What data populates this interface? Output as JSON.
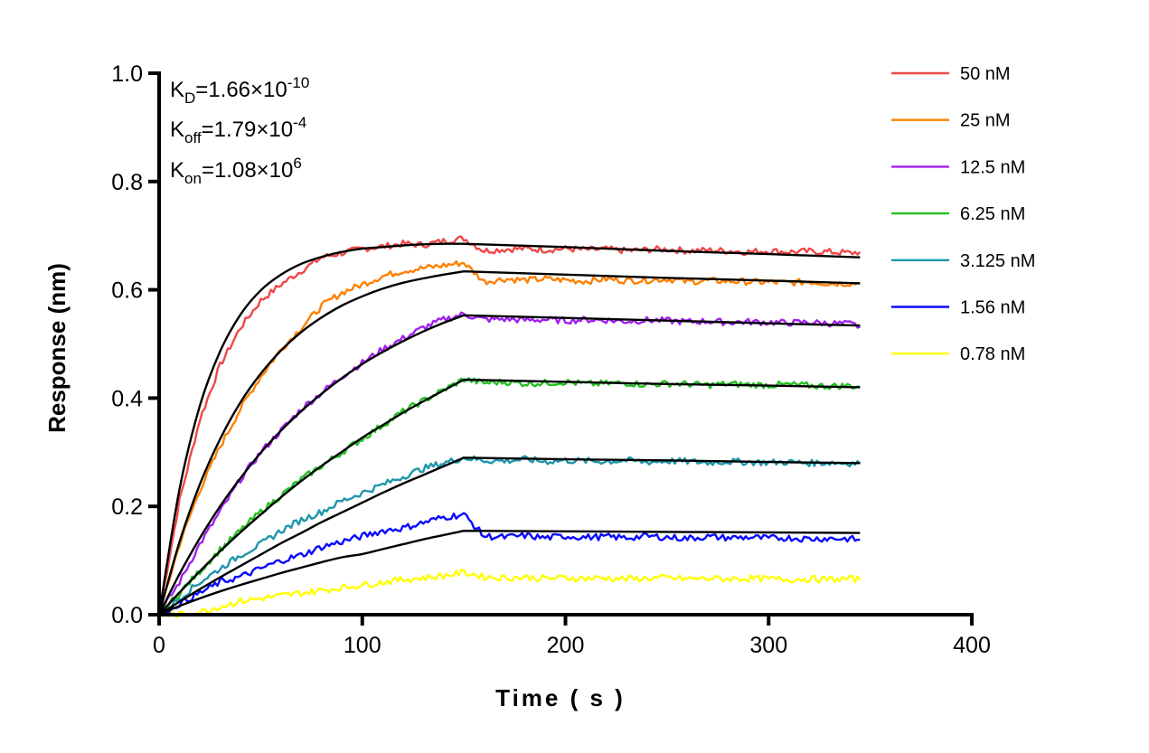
{
  "chart_data": {
    "type": "line",
    "xlabel": "Time ( s )",
    "ylabel": "Response (nm)",
    "xlim": [
      0,
      400
    ],
    "ylim": [
      0,
      1.0
    ],
    "xticks": [
      "0",
      "100",
      "200",
      "300",
      "400"
    ],
    "yticks": [
      "0.0",
      "0.2",
      "0.4",
      "0.6",
      "0.8",
      "1.0"
    ],
    "grid": false,
    "legend_position": "right",
    "annotations": {
      "kd": {
        "main": "K",
        "sub": "D",
        "eq": "=1.66×10",
        "sup": "-10"
      },
      "koff": {
        "main": "K",
        "sub": "off",
        "eq": "=1.79×10",
        "sup": "-4"
      },
      "kon": {
        "main": "K",
        "sub": "on",
        "eq": "=1.08×10",
        "sup": "6"
      }
    },
    "fit_color": "#000000",
    "fit_x": [
      0,
      10,
      20,
      30,
      40,
      50,
      60,
      70,
      80,
      90,
      100,
      110,
      120,
      130,
      140,
      150,
      200,
      250,
      300,
      345
    ],
    "measured_x": [
      0,
      10,
      20,
      30,
      40,
      50,
      60,
      70,
      80,
      90,
      100,
      110,
      120,
      130,
      140,
      150,
      160,
      170,
      180,
      190,
      200,
      210,
      220,
      230,
      240,
      250,
      260,
      270,
      280,
      290,
      300,
      310,
      320,
      330,
      340,
      345
    ],
    "series": [
      {
        "name": "50 nM",
        "color": "#F04848",
        "measured": [
          0,
          0.21,
          0.36,
          0.46,
          0.53,
          0.58,
          0.61,
          0.635,
          0.66,
          0.668,
          0.676,
          0.68,
          0.685,
          0.683,
          0.69,
          0.695,
          0.672,
          0.675,
          0.676,
          0.674,
          0.676,
          0.674,
          0.675,
          0.672,
          0.674,
          0.675,
          0.672,
          0.673,
          0.672,
          0.67,
          0.672,
          0.67,
          0.671,
          0.67,
          0.668,
          0.67
        ],
        "fit": [
          0,
          0.231,
          0.385,
          0.486,
          0.554,
          0.599,
          0.628,
          0.648,
          0.661,
          0.67,
          0.676,
          0.679,
          0.682,
          0.684,
          0.685,
          0.685,
          0.679,
          0.672,
          0.666,
          0.66
        ]
      },
      {
        "name": "25 nM",
        "color": "#FF8000",
        "measured": [
          0,
          0.13,
          0.23,
          0.31,
          0.38,
          0.44,
          0.49,
          0.53,
          0.57,
          0.595,
          0.61,
          0.625,
          0.635,
          0.64,
          0.645,
          0.65,
          0.615,
          0.62,
          0.618,
          0.62,
          0.618,
          0.616,
          0.62,
          0.617,
          0.618,
          0.62,
          0.615,
          0.617,
          0.616,
          0.615,
          0.614,
          0.613,
          0.615,
          0.612,
          0.612,
          0.612
        ],
        "fit": [
          0,
          0.134,
          0.24,
          0.324,
          0.392,
          0.445,
          0.488,
          0.522,
          0.549,
          0.571,
          0.588,
          0.602,
          0.613,
          0.621,
          0.628,
          0.634,
          0.628,
          0.622,
          0.617,
          0.612
        ]
      },
      {
        "name": "12.5 nM",
        "color": "#A020F0",
        "measured": [
          0,
          0.06,
          0.13,
          0.19,
          0.25,
          0.3,
          0.34,
          0.38,
          0.41,
          0.44,
          0.465,
          0.49,
          0.51,
          0.53,
          0.545,
          0.555,
          0.545,
          0.546,
          0.544,
          0.545,
          0.543,
          0.545,
          0.544,
          0.542,
          0.544,
          0.543,
          0.541,
          0.542,
          0.54,
          0.541,
          0.54,
          0.539,
          0.54,
          0.538,
          0.537,
          0.532
        ],
        "fit": [
          0,
          0.075,
          0.141,
          0.2,
          0.252,
          0.299,
          0.34,
          0.376,
          0.408,
          0.437,
          0.463,
          0.485,
          0.505,
          0.523,
          0.539,
          0.553,
          0.548,
          0.543,
          0.538,
          0.534
        ]
      },
      {
        "name": "6.25 nM",
        "color": "#22C022",
        "measured": [
          0,
          0.04,
          0.08,
          0.12,
          0.155,
          0.19,
          0.22,
          0.25,
          0.275,
          0.3,
          0.325,
          0.35,
          0.375,
          0.395,
          0.415,
          0.435,
          0.428,
          0.43,
          0.427,
          0.428,
          0.43,
          0.426,
          0.427,
          0.428,
          0.425,
          0.427,
          0.426,
          0.424,
          0.426,
          0.425,
          0.424,
          0.425,
          0.423,
          0.422,
          0.423,
          0.42
        ],
        "fit": [
          0,
          0.041,
          0.08,
          0.117,
          0.152,
          0.185,
          0.217,
          0.247,
          0.275,
          0.301,
          0.327,
          0.35,
          0.373,
          0.394,
          0.414,
          0.434,
          0.43,
          0.426,
          0.423,
          0.42
        ]
      },
      {
        "name": "3.125 nM",
        "color": "#1E96AA",
        "measured": [
          0,
          0.03,
          0.06,
          0.085,
          0.11,
          0.13,
          0.155,
          0.175,
          0.19,
          0.21,
          0.225,
          0.24,
          0.255,
          0.27,
          0.28,
          0.29,
          0.285,
          0.284,
          0.287,
          0.283,
          0.285,
          0.284,
          0.283,
          0.285,
          0.282,
          0.284,
          0.283,
          0.281,
          0.283,
          0.282,
          0.281,
          0.282,
          0.28,
          0.281,
          0.28,
          0.28
        ],
        "fit": [
          0,
          0.024,
          0.047,
          0.069,
          0.09,
          0.111,
          0.132,
          0.151,
          0.171,
          0.189,
          0.207,
          0.225,
          0.242,
          0.258,
          0.274,
          0.29,
          0.287,
          0.285,
          0.282,
          0.28
        ]
      },
      {
        "name": "1.56 nM",
        "color": "#0A0AFF",
        "measured": [
          0,
          0.02,
          0.04,
          0.06,
          0.07,
          0.085,
          0.1,
          0.11,
          0.125,
          0.135,
          0.145,
          0.155,
          0.16,
          0.17,
          0.18,
          0.185,
          0.145,
          0.143,
          0.146,
          0.142,
          0.145,
          0.143,
          0.144,
          0.142,
          0.145,
          0.143,
          0.141,
          0.144,
          0.142,
          0.143,
          0.141,
          0.142,
          0.14,
          0.141,
          0.14,
          0.138
        ],
        "fit": [
          0,
          0.016,
          0.03,
          0.043,
          0.055,
          0.066,
          0.077,
          0.087,
          0.097,
          0.106,
          0.112,
          0.121,
          0.13,
          0.139,
          0.147,
          0.155,
          0.154,
          0.153,
          0.152,
          0.151
        ]
      },
      {
        "name": "0.78 nM",
        "color": "#FFFF00",
        "measured": [
          0,
          0.0,
          0.005,
          0.015,
          0.025,
          0.03,
          0.035,
          0.04,
          0.045,
          0.05,
          0.055,
          0.06,
          0.065,
          0.068,
          0.072,
          0.078,
          0.07,
          0.068,
          0.069,
          0.067,
          0.068,
          0.067,
          0.068,
          0.066,
          0.067,
          0.068,
          0.066,
          0.067,
          0.066,
          0.067,
          0.066,
          0.065,
          0.066,
          0.065,
          0.066,
          0.065
        ]
      }
    ]
  }
}
